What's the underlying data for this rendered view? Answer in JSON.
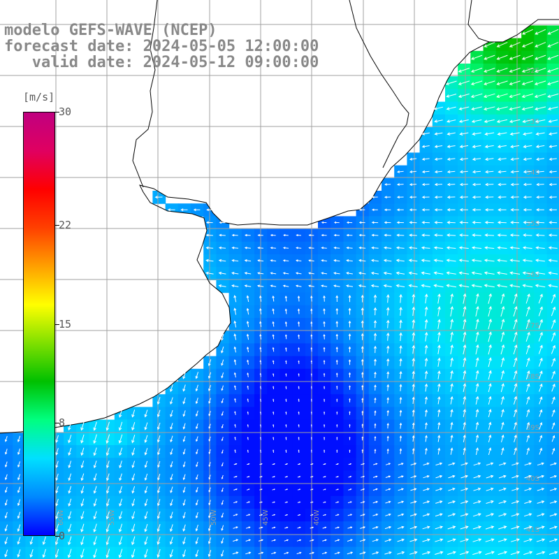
{
  "title": {
    "line1": "modelo GEFS-WAVE (NCEP)",
    "line2": "forecast date: 2024-05-05 12:00:00",
    "line3": "   valid date: 2024-05-12 09:00:00"
  },
  "colorbar": {
    "unit": "[m/s]",
    "ticks": [
      "30",
      "22",
      "15",
      "8",
      "0"
    ],
    "tick_values": [
      30,
      22,
      15,
      8,
      0
    ],
    "range": [
      0,
      30
    ],
    "colors": [
      "#0000ff",
      "#0088ff",
      "#00e0ff",
      "#00ff80",
      "#00c000",
      "#80e000",
      "#ffff00",
      "#ffa000",
      "#ff4000",
      "#ff0000",
      "#e00060",
      "#c00080"
    ]
  },
  "map": {
    "lon_labels": [
      "60W",
      "55W",
      "50W",
      "45W",
      "40W"
    ],
    "lat_labels": [
      "32S",
      "33S",
      "34S",
      "35S",
      "36S",
      "37S",
      "38S",
      "39S",
      "40S",
      "41S"
    ],
    "colors": {
      "land": "#ffffff",
      "coast": "#000000",
      "grid": "#a0a0a0",
      "arrow": "#ffffff"
    }
  }
}
